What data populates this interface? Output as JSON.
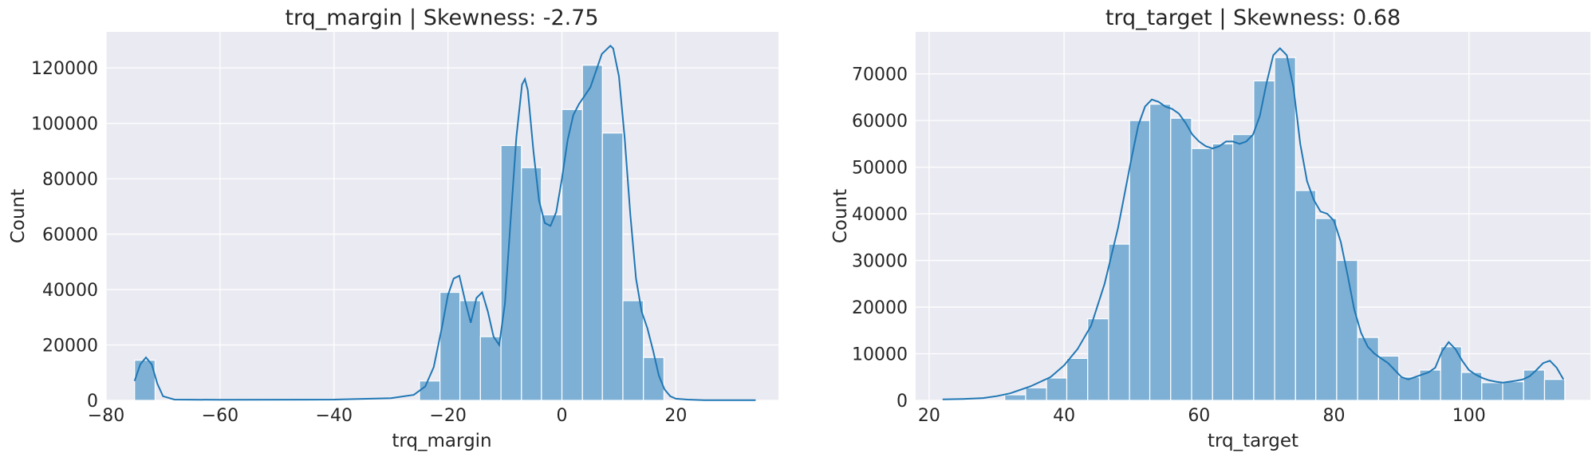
{
  "chart_data": [
    {
      "type": "bar",
      "subtype": "histogram_with_kde",
      "title": "trq_margin | Skewness: -2.75",
      "xlabel": "trq_margin",
      "ylabel": "Count",
      "xlim": [
        -80,
        38
      ],
      "ylim": [
        0,
        133000
      ],
      "xticks": [
        -80,
        -60,
        -40,
        -20,
        0,
        20
      ],
      "yticks": [
        0,
        20000,
        40000,
        60000,
        80000,
        100000,
        120000
      ],
      "grid": true,
      "legend": "none",
      "bar_color": "#7eb0d5",
      "line_color": "#1f77b4",
      "bin_edges": [
        -75.0,
        -71.4,
        -67.9,
        -64.3,
        -60.7,
        -57.1,
        -53.6,
        -50.0,
        -46.4,
        -42.9,
        -39.3,
        -35.7,
        -32.1,
        -28.6,
        -25.0,
        -21.4,
        -17.9,
        -14.3,
        -10.7,
        -7.1,
        -3.6,
        0.0,
        3.6,
        7.1,
        10.7,
        14.3,
        17.9,
        21.4,
        25.0,
        28.6,
        32.1
      ],
      "values": [
        14500,
        0,
        0,
        0,
        0,
        0,
        0,
        0,
        0,
        0,
        0,
        0,
        0,
        0,
        7000,
        39000,
        36000,
        23000,
        92000,
        84000,
        67000,
        105000,
        121000,
        96500,
        36000,
        15500,
        0,
        0,
        0,
        0
      ],
      "kde": {
        "x": [
          -75,
          -74,
          -73,
          -72,
          -71,
          -70,
          -68,
          -60,
          -40,
          -30,
          -26,
          -24,
          -22.5,
          -21,
          -20,
          -19,
          -18,
          -17,
          -16,
          -15,
          -14,
          -13,
          -12,
          -11,
          -10,
          -9,
          -8,
          -7,
          -6.5,
          -6,
          -5,
          -4,
          -3,
          -2,
          -1,
          0,
          1,
          2,
          3,
          4,
          5,
          6,
          7,
          8,
          8.5,
          9,
          10,
          11,
          12,
          13,
          14,
          15,
          16,
          17,
          18,
          19,
          20,
          22,
          25,
          34
        ],
        "y": [
          7000,
          13000,
          15500,
          13000,
          6000,
          1500,
          300,
          200,
          300,
          800,
          2000,
          5000,
          12000,
          27000,
          38000,
          44000,
          45000,
          36000,
          28000,
          37000,
          39000,
          32000,
          23000,
          20000,
          35000,
          65000,
          95000,
          114000,
          116000,
          112000,
          90000,
          72000,
          64000,
          63000,
          68000,
          80000,
          94000,
          103000,
          107000,
          110000,
          113000,
          119000,
          125000,
          127000,
          128000,
          127000,
          117000,
          95000,
          67000,
          44000,
          32000,
          26000,
          18000,
          9000,
          4000,
          1500,
          600,
          300,
          100,
          50
        ]
      }
    },
    {
      "type": "bar",
      "subtype": "histogram_with_kde",
      "title": "trq_target | Skewness: 0.68",
      "xlabel": "trq_target",
      "ylabel": "Count",
      "xlim": [
        18,
        118
      ],
      "ylim": [
        0,
        79000
      ],
      "xticks": [
        20,
        40,
        60,
        80,
        100
      ],
      "yticks": [
        0,
        10000,
        20000,
        30000,
        40000,
        50000,
        60000,
        70000
      ],
      "grid": true,
      "legend": "none",
      "bar_color": "#7eb0d5",
      "line_color": "#1f77b4",
      "bin_edges": [
        22.0,
        25.1,
        28.1,
        31.2,
        34.3,
        37.4,
        40.4,
        43.5,
        46.6,
        49.7,
        52.7,
        55.8,
        58.9,
        62.0,
        65.0,
        68.1,
        71.2,
        74.3,
        77.3,
        80.4,
        83.5,
        86.6,
        89.6,
        92.7,
        95.8,
        98.9,
        101.9,
        105.0,
        108.1,
        111.2,
        114.2
      ],
      "values": [
        0,
        0,
        0,
        1200,
        2700,
        4800,
        9000,
        17500,
        33500,
        60000,
        63500,
        60500,
        54000,
        55000,
        57000,
        68500,
        73500,
        45000,
        39000,
        30000,
        13500,
        9500,
        5000,
        6500,
        11500,
        6000,
        3800,
        4000,
        6500,
        4500
      ],
      "kde": {
        "x": [
          22,
          25,
          28,
          30,
          32,
          35,
          38,
          40,
          42,
          44,
          46,
          48,
          50,
          51,
          52,
          53,
          54,
          55,
          56,
          57,
          58,
          59,
          60,
          61,
          62,
          63,
          64,
          65,
          66,
          67,
          68,
          69,
          70,
          71,
          72,
          73,
          74,
          75,
          76,
          77,
          78,
          79,
          80,
          81,
          82,
          83,
          84,
          85,
          86,
          87,
          88,
          89,
          90,
          91,
          92,
          93,
          94,
          95,
          96,
          97,
          98,
          99,
          100,
          101,
          102,
          103,
          104,
          105,
          106,
          107,
          108,
          109,
          110,
          111,
          112,
          113,
          114
        ],
        "y": [
          200,
          300,
          500,
          900,
          1500,
          3000,
          5000,
          7500,
          11000,
          16000,
          25000,
          37000,
          52000,
          59000,
          63000,
          64500,
          64000,
          63000,
          62500,
          61500,
          59500,
          57000,
          55500,
          54500,
          54000,
          54500,
          55500,
          55500,
          55000,
          55500,
          57000,
          61000,
          68000,
          74000,
          75500,
          74000,
          67000,
          55000,
          47000,
          43000,
          40500,
          40000,
          38500,
          34000,
          27000,
          19500,
          14500,
          11500,
          10000,
          9000,
          8000,
          6500,
          5000,
          4500,
          5000,
          5500,
          6000,
          7000,
          10500,
          12500,
          11000,
          8500,
          6500,
          5500,
          4800,
          4300,
          4000,
          3800,
          4000,
          4200,
          4500,
          5200,
          6500,
          8000,
          8500,
          7000,
          4500
        ]
      }
    }
  ]
}
